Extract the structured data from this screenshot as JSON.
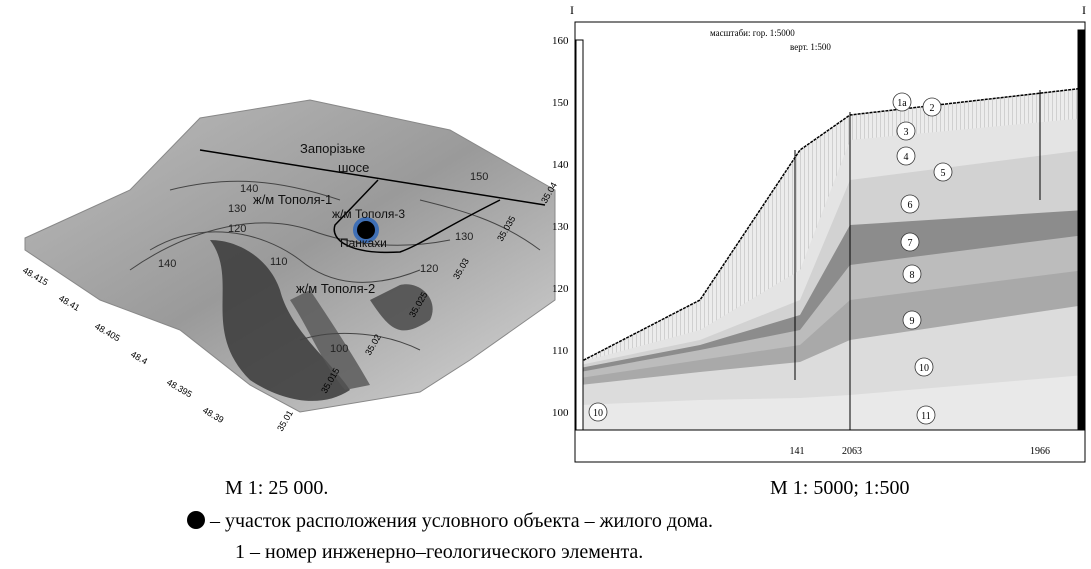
{
  "left_map": {
    "labels": [
      "Запорізьке",
      "шосе",
      "ж/м Тополя-1",
      "ж/м Тополя-3",
      "Панкахи",
      "ж/м Тополя-2"
    ],
    "contour_labels": [
      "140",
      "130",
      "120",
      "150",
      "130",
      "120",
      "110",
      "100",
      "140"
    ],
    "lat_ticks": [
      "48.415",
      "48.41",
      "48.405",
      "48.4",
      "48.395",
      "48.39"
    ],
    "lon_ticks": [
      "35.01",
      "35.015",
      "35.02",
      "35.025",
      "35.03",
      "35.035",
      "35.04"
    ],
    "caption": "М 1: 25 000."
  },
  "right_section": {
    "section_marks": [
      "I",
      "I"
    ],
    "scale_horizontal": "масштаби: гор. 1:5000",
    "scale_vertical": "верт. 1:500",
    "elevation_ticks": [
      "160",
      "150",
      "140",
      "130",
      "120",
      "110",
      "100"
    ],
    "layer_numbers": [
      "1а",
      "2",
      "3",
      "4",
      "5",
      "6",
      "7",
      "8",
      "9",
      "10",
      "11",
      "10"
    ],
    "boreholes": [
      "141",
      "2063",
      "1966"
    ],
    "caption": "М 1: 5000; 1:500"
  },
  "legend": {
    "object": "– участок расположения условного объекта – жилого дома.",
    "element": "1 – номер инженерно–геологического элемента."
  }
}
